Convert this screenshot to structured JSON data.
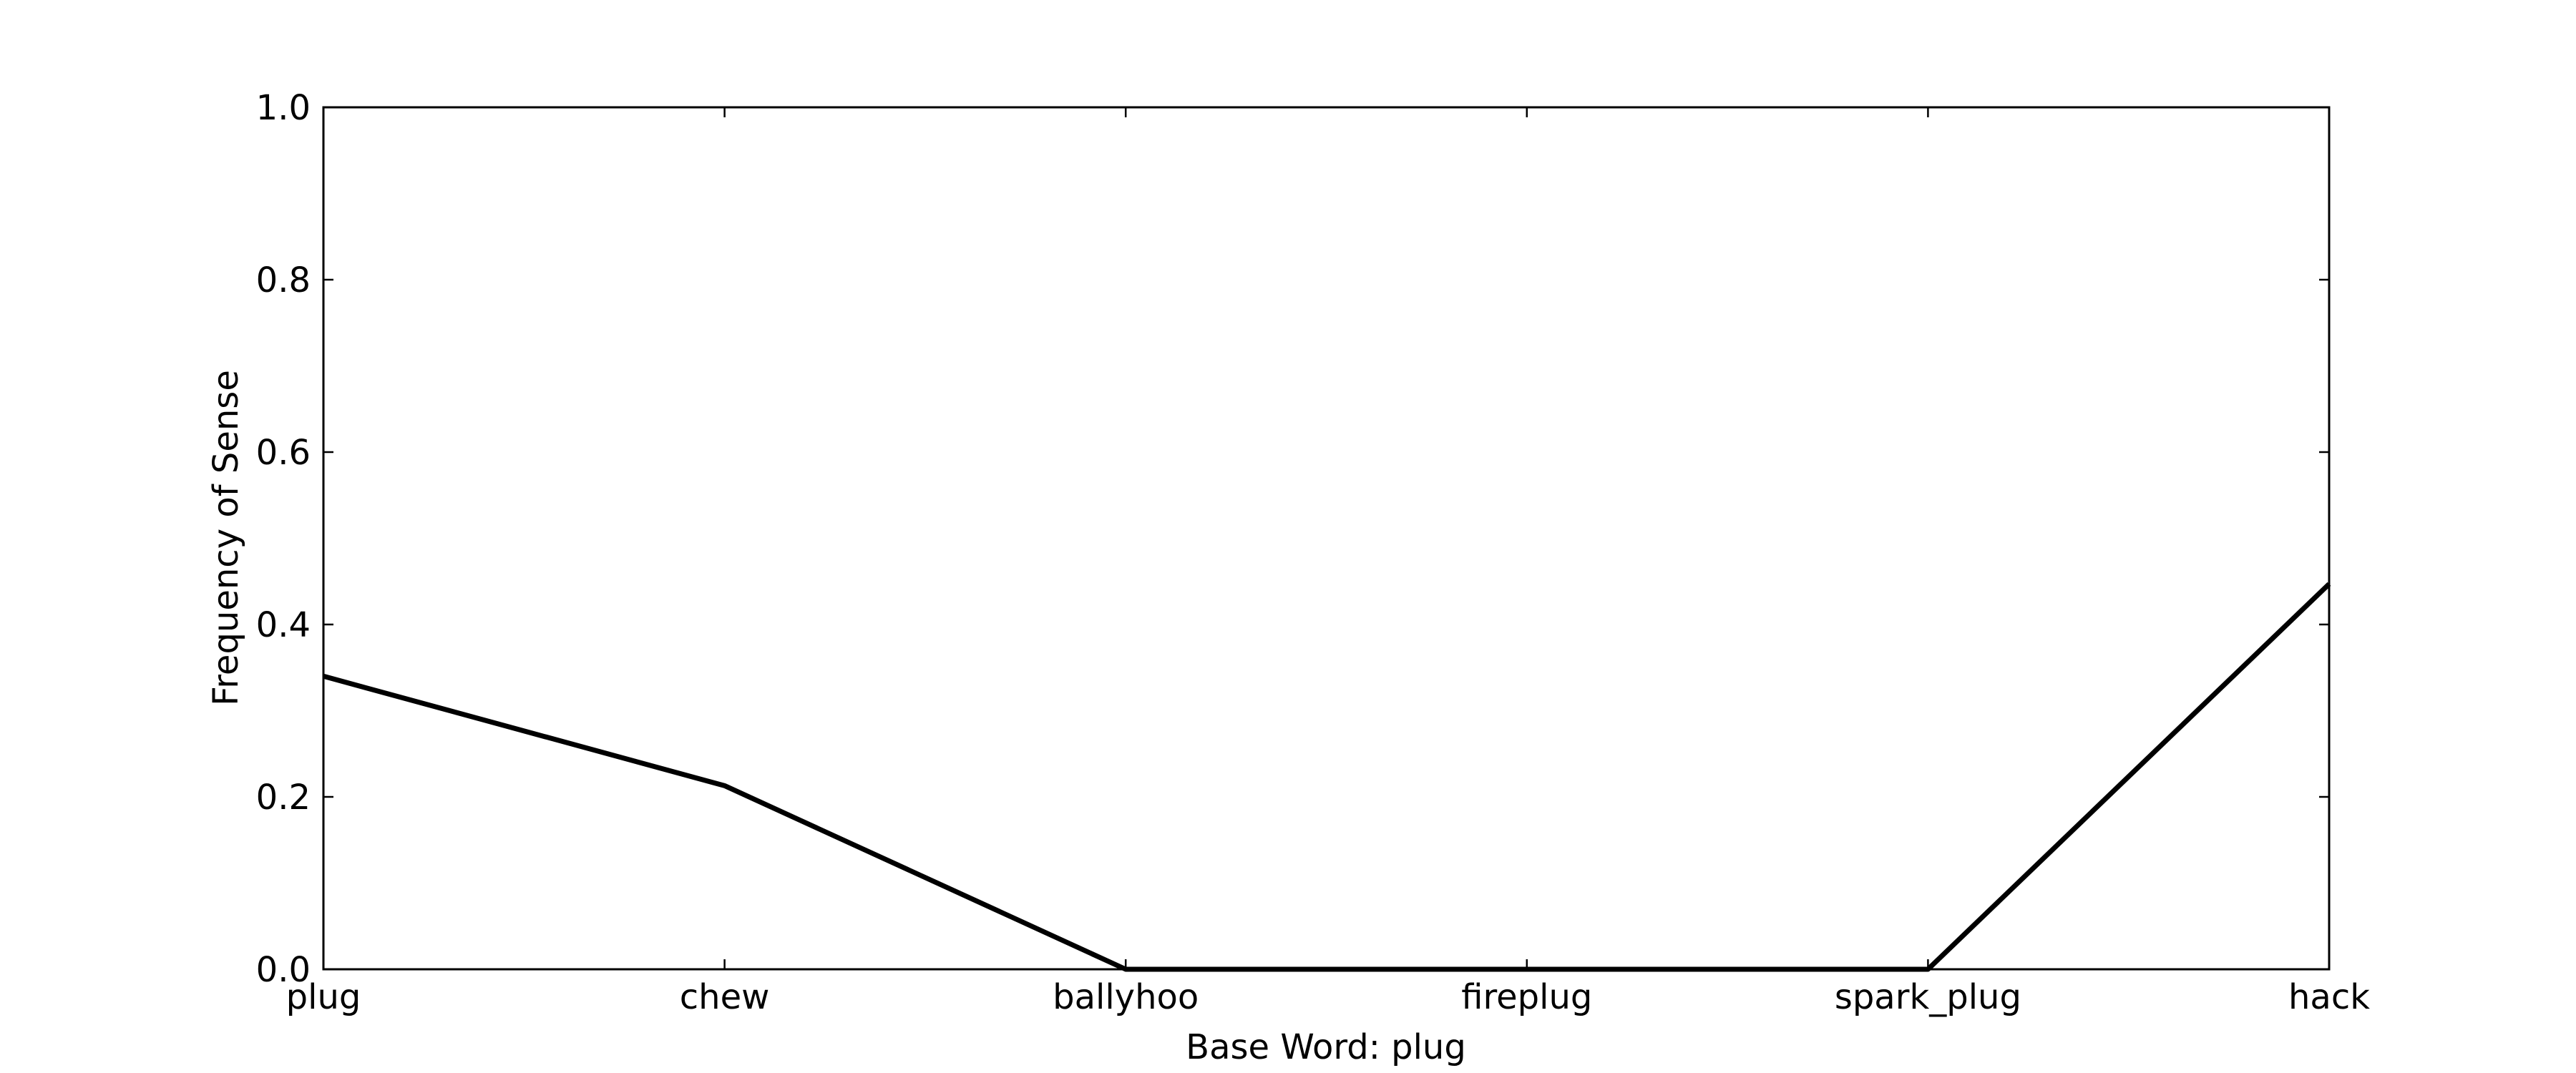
{
  "chart_data": {
    "type": "line",
    "title": "",
    "xlabel": "Base Word: plug",
    "ylabel": "Frequency of Sense",
    "categories": [
      "plug",
      "chew",
      "ballyhoo",
      "fireplug",
      "spark_plug",
      "hack"
    ],
    "series": [
      {
        "values": [
          0.34,
          0.213,
          0.0,
          0.0,
          0.0,
          0.447
        ]
      }
    ],
    "ylim": [
      0.0,
      1.0
    ],
    "yticks": [
      "0.0",
      "0.2",
      "0.4",
      "0.6",
      "0.8",
      "1.0"
    ],
    "grid": false,
    "legend": "none",
    "line_color": "#000000"
  }
}
